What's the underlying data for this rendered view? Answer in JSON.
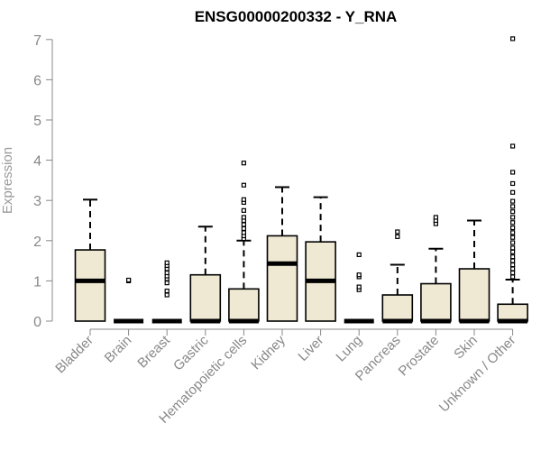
{
  "chart_data": {
    "type": "box",
    "title": "ENSG00000200332 - Y_RNA",
    "ylabel": "Expression",
    "xlabel": "",
    "ylim": [
      0,
      7
    ],
    "yticks": [
      0,
      1,
      2,
      3,
      4,
      5,
      6,
      7
    ],
    "grid": false,
    "box_fill": "#efe8d2",
    "categories": [
      "Bladder",
      "Brain",
      "Breast",
      "Gastric",
      "Hematopoietic cells",
      "Kidney",
      "Liver",
      "Lung",
      "Pancreas",
      "Prostate",
      "Skin",
      "Unknown / Other"
    ],
    "boxes": [
      {
        "min": 0,
        "q1": 0,
        "median": 1.0,
        "q3": 1.77,
        "max": 3.02,
        "outliers": []
      },
      {
        "min": 0,
        "q1": 0,
        "median": 0,
        "q3": 0,
        "max": 0,
        "outliers": [
          1.0,
          1.02
        ]
      },
      {
        "min": 0,
        "q1": 0,
        "median": 0,
        "q3": 0,
        "max": 0,
        "outliers": [
          0.65,
          0.75,
          0.95,
          1.05,
          1.12,
          1.2,
          1.3,
          1.38,
          1.45
        ]
      },
      {
        "min": 0,
        "q1": 0,
        "median": 0,
        "q3": 1.15,
        "max": 2.35,
        "outliers": []
      },
      {
        "min": 0,
        "q1": 0,
        "median": 0,
        "q3": 0.8,
        "max": 2.0,
        "outliers": [
          2.05,
          2.12,
          2.2,
          2.3,
          2.4,
          2.5,
          2.58,
          2.75,
          2.95,
          3.02,
          3.38,
          3.93
        ]
      },
      {
        "min": 0,
        "q1": 0,
        "median": 1.43,
        "q3": 2.12,
        "max": 3.33,
        "outliers": []
      },
      {
        "min": 0,
        "q1": 0,
        "median": 1.0,
        "q3": 1.97,
        "max": 3.08,
        "outliers": []
      },
      {
        "min": 0,
        "q1": 0,
        "median": 0,
        "q3": 0,
        "max": 0,
        "outliers": [
          0.78,
          0.85,
          1.1,
          1.15,
          1.65
        ]
      },
      {
        "min": 0,
        "q1": 0,
        "median": 0,
        "q3": 0.65,
        "max": 1.4,
        "outliers": [
          2.1,
          2.22
        ]
      },
      {
        "min": 0,
        "q1": 0,
        "median": 0,
        "q3": 0.93,
        "max": 1.8,
        "outliers": [
          2.42,
          2.5,
          2.58
        ]
      },
      {
        "min": 0,
        "q1": 0,
        "median": 0,
        "q3": 1.3,
        "max": 2.5,
        "outliers": []
      },
      {
        "min": 0,
        "q1": 0,
        "median": 0,
        "q3": 0.42,
        "max": 1.03,
        "outliers": [
          1.1,
          1.2,
          1.3,
          1.4,
          1.5,
          1.6,
          1.72,
          1.82,
          1.95,
          2.08,
          2.2,
          2.32,
          2.45,
          2.58,
          2.72,
          2.85,
          2.98,
          3.2,
          3.42,
          3.7,
          4.35,
          7.02
        ]
      }
    ]
  }
}
